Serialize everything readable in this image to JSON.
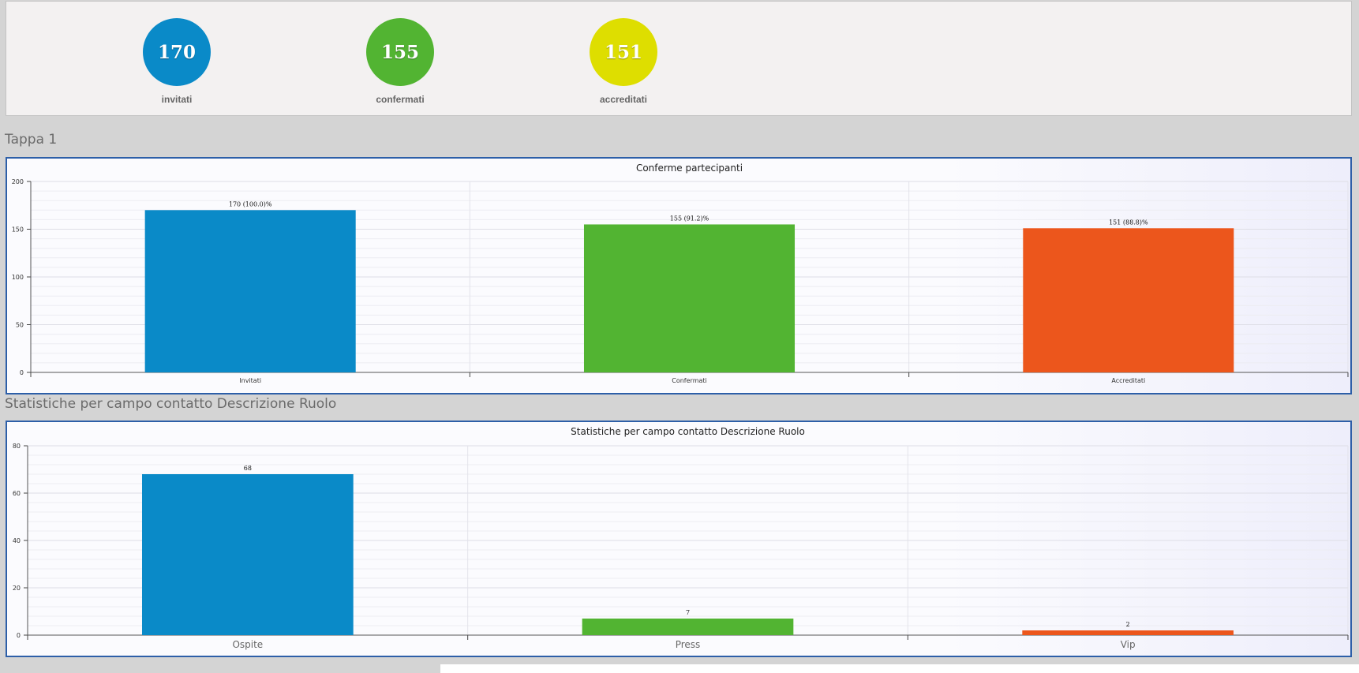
{
  "summary": [
    {
      "value": "170",
      "label": "invitati",
      "color": "#0a8ac8"
    },
    {
      "value": "155",
      "label": "confermati",
      "color": "#52b432"
    },
    {
      "value": "151",
      "label": "accreditati",
      "color": "#dede00"
    }
  ],
  "section1_title": "Tappa 1",
  "section2_title": "Statistiche per campo contatto Descrizione Ruolo",
  "chart_data": [
    {
      "type": "bar",
      "title": "Conferme partecipanti",
      "categories": [
        "Invitati",
        "Confermati",
        "Accreditati"
      ],
      "values": [
        170,
        155,
        151
      ],
      "data_labels": [
        "170 (100.0)%",
        "155 (91.2)%",
        "151 (88.8)%"
      ],
      "colors": [
        "#0a8ac8",
        "#52b432",
        "#ec561c"
      ],
      "ylim": [
        0,
        200
      ],
      "yticks": [
        0,
        50,
        100,
        150,
        200
      ],
      "grid": true,
      "legend": "none"
    },
    {
      "type": "bar",
      "title": "Statistiche per campo contatto Descrizione Ruolo",
      "categories": [
        "Ospite",
        "Press",
        "Vip"
      ],
      "values": [
        68,
        7,
        2
      ],
      "data_labels": [
        "68",
        "7",
        "2"
      ],
      "colors": [
        "#0a8ac8",
        "#52b432",
        "#ec561c"
      ],
      "ylim": [
        0,
        80
      ],
      "yticks": [
        0,
        20,
        40,
        60,
        80
      ],
      "grid": true,
      "legend": "none"
    }
  ]
}
